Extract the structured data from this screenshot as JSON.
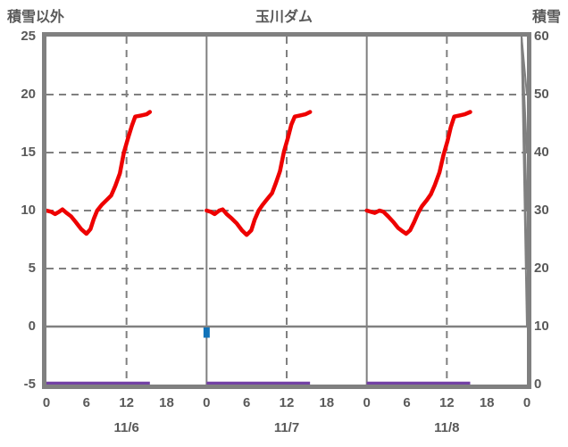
{
  "titles": {
    "left": "積雪以外",
    "center": "玉川ダム",
    "right": "積雪"
  },
  "colors": {
    "background": "#ffffff",
    "border": "#808080",
    "grid": "#808080",
    "text": "#595959",
    "red_line": "#ee0000",
    "purple_line": "#7341a5",
    "blue_bar": "#1173b9"
  },
  "chart_data": {
    "type": "line",
    "title": "玉川ダム",
    "left_axis": {
      "title": "積雪以外",
      "tick_labels": [
        "25",
        "20",
        "15",
        "10",
        "5",
        "0",
        "-5"
      ],
      "tick_values": [
        25,
        20,
        15,
        10,
        5,
        0,
        -5
      ],
      "range": [
        -5,
        25
      ]
    },
    "right_axis": {
      "title": "積雪",
      "tick_labels": [
        "60",
        "50",
        "40",
        "30",
        "20",
        "10",
        "0"
      ],
      "tick_values": [
        60,
        50,
        40,
        30,
        20,
        10,
        0
      ],
      "range": [
        0,
        60
      ]
    },
    "x_axis": {
      "hour_labels": [
        "0",
        "6",
        "12",
        "18",
        "0",
        "6",
        "12",
        "18",
        "0",
        "6",
        "12",
        "18",
        "0"
      ],
      "hour_step": 6,
      "date_labels": [
        "11/6",
        "11/7",
        "11/8"
      ],
      "days": 3,
      "hours_total": 72,
      "grid_on": true
    },
    "gridlines": {
      "horizontal_dashed_values": [
        20,
        15,
        10,
        5
      ],
      "horizontal_solid_values": [
        0
      ],
      "vertical_dashed_hours": [
        12,
        36,
        60
      ],
      "vertical_solid_hours": [
        24,
        48
      ],
      "inner_tick_values_left": [
        20,
        15,
        10,
        5,
        0
      ],
      "inner_tick_values_right": [
        50,
        40,
        30,
        20,
        10
      ]
    },
    "series": [
      {
        "name": "red-line",
        "type": "line",
        "axis": "left",
        "color_key": "red_line",
        "days": [
          {
            "date": "11/6",
            "points": [
              [
                0,
                10.0
              ],
              [
                0.7,
                9.9
              ],
              [
                1.3,
                9.7
              ],
              [
                1.9,
                9.9
              ],
              [
                2.4,
                10.1
              ],
              [
                3.0,
                9.8
              ],
              [
                3.7,
                9.5
              ],
              [
                4.4,
                9.0
              ],
              [
                5.2,
                8.4
              ],
              [
                6.0,
                8.0
              ],
              [
                6.6,
                8.4
              ],
              [
                7.1,
                9.3
              ],
              [
                7.6,
                10.0
              ],
              [
                8.3,
                10.5
              ],
              [
                9.0,
                10.9
              ],
              [
                9.7,
                11.3
              ],
              [
                10.3,
                12.1
              ],
              [
                11.0,
                13.2
              ],
              [
                11.6,
                15.0
              ],
              [
                12.2,
                16.2
              ],
              [
                12.8,
                17.3
              ],
              [
                13.3,
                18.1
              ],
              [
                14.2,
                18.2
              ],
              [
                15.0,
                18.3
              ],
              [
                15.5,
                18.5
              ]
            ]
          },
          {
            "date": "11/7",
            "points": [
              [
                0,
                10.0
              ],
              [
                0.6,
                9.9
              ],
              [
                1.2,
                9.7
              ],
              [
                1.9,
                10.0
              ],
              [
                2.4,
                10.1
              ],
              [
                3.0,
                9.7
              ],
              [
                3.8,
                9.3
              ],
              [
                4.5,
                8.9
              ],
              [
                5.3,
                8.3
              ],
              [
                6.0,
                7.9
              ],
              [
                6.7,
                8.3
              ],
              [
                7.2,
                9.2
              ],
              [
                7.8,
                10.0
              ],
              [
                8.4,
                10.5
              ],
              [
                9.1,
                11.0
              ],
              [
                9.8,
                11.5
              ],
              [
                10.4,
                12.4
              ],
              [
                11.0,
                13.4
              ],
              [
                11.6,
                15.1
              ],
              [
                12.2,
                16.3
              ],
              [
                12.7,
                17.4
              ],
              [
                13.2,
                18.1
              ],
              [
                14.0,
                18.2
              ],
              [
                14.8,
                18.3
              ],
              [
                15.5,
                18.5
              ]
            ]
          },
          {
            "date": "11/8",
            "points": [
              [
                0,
                10.0
              ],
              [
                0.6,
                9.9
              ],
              [
                1.2,
                9.8
              ],
              [
                1.9,
                10.0
              ],
              [
                2.5,
                9.9
              ],
              [
                3.2,
                9.5
              ],
              [
                4.0,
                9.0
              ],
              [
                4.7,
                8.5
              ],
              [
                5.4,
                8.2
              ],
              [
                5.9,
                8.0
              ],
              [
                6.5,
                8.3
              ],
              [
                7.1,
                9.0
              ],
              [
                7.7,
                9.8
              ],
              [
                8.3,
                10.4
              ],
              [
                9.0,
                10.9
              ],
              [
                9.6,
                11.4
              ],
              [
                10.2,
                12.2
              ],
              [
                10.9,
                13.3
              ],
              [
                11.5,
                14.8
              ],
              [
                12.1,
                16.0
              ],
              [
                12.6,
                17.2
              ],
              [
                13.1,
                18.1
              ],
              [
                13.9,
                18.2
              ],
              [
                14.7,
                18.3
              ],
              [
                15.5,
                18.5
              ]
            ]
          }
        ]
      },
      {
        "name": "purple-line",
        "type": "line",
        "axis": "right",
        "value": 0,
        "color_key": "purple_line",
        "segments_hours": [
          [
            0,
            15.5
          ],
          [
            24,
            39.5
          ],
          [
            48,
            63.5
          ]
        ]
      },
      {
        "name": "blue-bar",
        "type": "bar",
        "axis": "left",
        "color_key": "blue_bar",
        "bars": [
          {
            "hour": 24,
            "from": 0,
            "to": -1.0
          }
        ]
      }
    ]
  }
}
